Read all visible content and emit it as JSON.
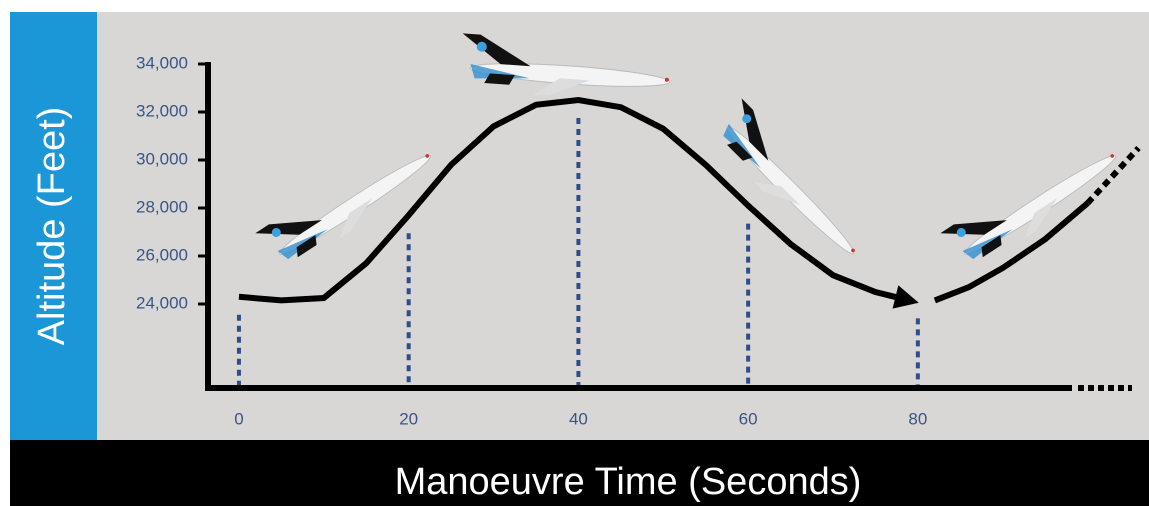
{
  "chart_data": {
    "type": "line",
    "xlabel": "Manoeuvre Time (Seconds)",
    "ylabel": "Altitude (Feet)",
    "xlim": [
      -4,
      107
    ],
    "ylim": [
      20500,
      34000
    ],
    "xticks": [
      0,
      20,
      40,
      60,
      80
    ],
    "yticks": [
      {
        "value": 24000,
        "label": "24,000"
      },
      {
        "value": 26000,
        "label": "26,000"
      },
      {
        "value": 28000,
        "label": "28,000"
      },
      {
        "value": 30000,
        "label": "30,000"
      },
      {
        "value": 32000,
        "label": "32,000"
      },
      {
        "value": 34000,
        "label": "34,000"
      }
    ],
    "series": [
      {
        "color": "#000000",
        "style": "solid",
        "x": [
          0,
          5,
          10,
          15,
          20,
          25,
          30,
          35,
          40,
          45,
          50,
          55,
          60,
          65,
          70,
          75,
          79,
          80,
          82,
          86,
          90,
          95,
          100
        ],
        "values": [
          24300,
          24150,
          24250,
          25700,
          27700,
          29800,
          31400,
          32300,
          32500,
          32200,
          31300,
          29800,
          28100,
          26500,
          25200,
          24500,
          24150,
          null,
          24150,
          24700,
          25500,
          26700,
          28200
        ]
      },
      {
        "color": "#000000",
        "style": "dotted",
        "x": [
          100,
          106
        ],
        "values": [
          28200,
          30500
        ]
      }
    ]
  }
}
